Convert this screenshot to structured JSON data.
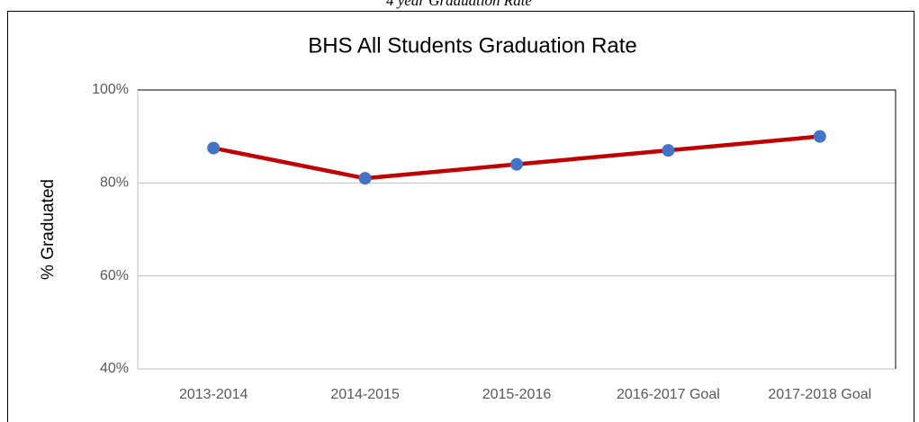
{
  "caption": "4 year Graduation Rate",
  "chart_data": {
    "type": "line",
    "title": "BHS All Students Graduation Rate",
    "y_label": "% Graduated",
    "categories": [
      "2013-2014",
      "2014-2015",
      "2015-2016",
      "2016-2017 Goal",
      "2017-2018 Goal"
    ],
    "values": [
      87.5,
      81,
      84,
      87,
      90
    ],
    "color": "#c00000",
    "marker_color": "#4472c4",
    "ylim": [
      40,
      100
    ],
    "yticks": [
      {
        "value": 40,
        "label": "40%"
      },
      {
        "value": 60,
        "label": "60%"
      },
      {
        "value": 80,
        "label": "80%"
      },
      {
        "value": 100,
        "label": "100%"
      }
    ],
    "grid": true
  }
}
